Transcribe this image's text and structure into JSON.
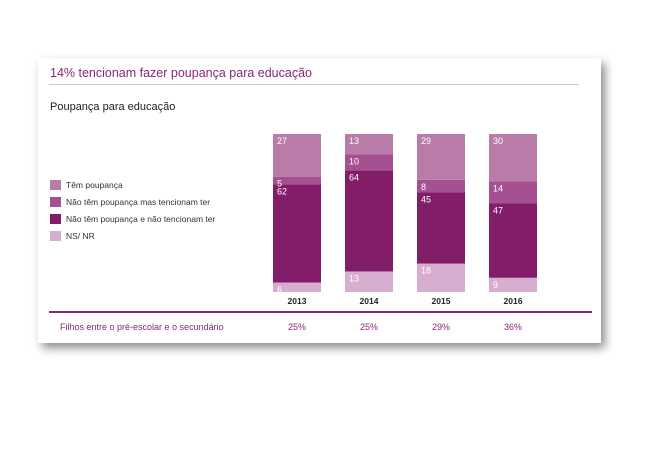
{
  "header": {
    "title": "14% tencionam fazer poupança para educação",
    "subtitle": "Poupança para educação"
  },
  "legend": [
    {
      "label": "Têm poupança",
      "color": "#b97ba7"
    },
    {
      "label": "Não têm poupança mas tencionam ter",
      "color": "#a55091"
    },
    {
      "label": "Não têm poupança e não tencionam ter",
      "color": "#811d69"
    },
    {
      "label": "NS/ NR",
      "color": "#d8aed0"
    }
  ],
  "footer": {
    "label": "Filhos entre o pré-escolar e o secundário",
    "values": [
      "25%",
      "25%",
      "29%",
      "36%"
    ]
  },
  "chart_data": {
    "type": "bar",
    "stacked": true,
    "categories": [
      "2013",
      "2014",
      "2015",
      "2016"
    ],
    "stack_order": "bottom-to-top",
    "series": [
      {
        "name": "NS/ NR",
        "values": [
          6,
          13,
          18,
          9
        ],
        "color": "#d8aed0"
      },
      {
        "name": "Não têm poupança e não tencionam ter",
        "values": [
          62,
          64,
          45,
          47
        ],
        "color": "#811d69"
      },
      {
        "name": "Não têm poupança mas tencionam ter",
        "values": [
          5,
          10,
          8,
          14
        ],
        "color": "#a55091"
      },
      {
        "name": "Têm poupança",
        "values": [
          27,
          13,
          29,
          30
        ],
        "color": "#b97ba7"
      }
    ],
    "ylim": [
      0,
      100
    ],
    "grid": false,
    "legend_position": "left"
  }
}
